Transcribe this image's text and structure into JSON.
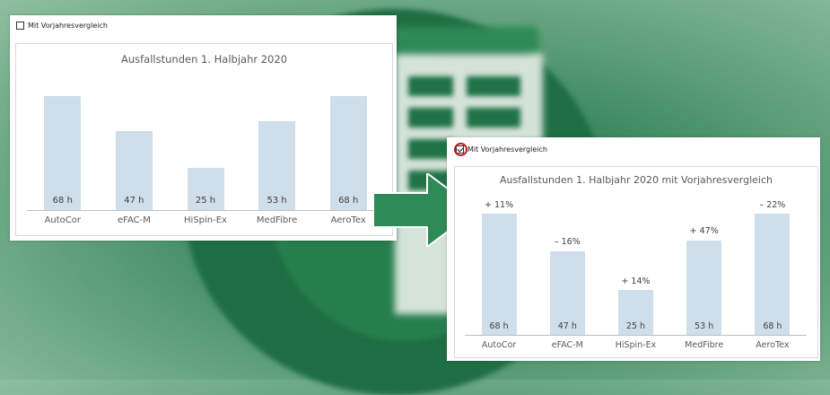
{
  "left_panel": {
    "checkbox_label": "Mit Vorjahresvergleich",
    "checkbox_checked": false,
    "chart_data": {
      "type": "bar",
      "title": "Ausfallstunden 1. Halbjahr 2020",
      "categories": [
        "AutoCor",
        "eFAC-M",
        "HiSpin-Ex",
        "MedFibre",
        "AeroTex"
      ],
      "values": [
        68,
        47,
        25,
        53,
        68
      ],
      "value_labels": [
        "68 h",
        "47 h",
        "25 h",
        "53 h",
        "68 h"
      ],
      "ylim": [
        0,
        68
      ],
      "grid": false,
      "bar_color": "#cfdeeb"
    }
  },
  "right_panel": {
    "checkbox_label": "Mit Vorjahresvergleich",
    "checkbox_checked": true,
    "chart_data": {
      "type": "bar",
      "title": "Ausfallstunden 1. Halbjahr 2020 mit Vorjahresvergleich",
      "categories": [
        "AutoCor",
        "eFAC-M",
        "HiSpin-Ex",
        "MedFibre",
        "AeroTex"
      ],
      "values": [
        68,
        47,
        25,
        53,
        68
      ],
      "value_labels": [
        "68 h",
        "47 h",
        "25 h",
        "53 h",
        "68 h"
      ],
      "change_labels": [
        "+ 11%",
        "– 16%",
        "+ 14%",
        "+ 47%",
        "– 22%"
      ],
      "ylim": [
        0,
        68
      ],
      "grid": false,
      "bar_color": "#cfdeeb"
    }
  },
  "colors": {
    "highlight": "#c0151c",
    "arrow": "#2e8b57"
  }
}
